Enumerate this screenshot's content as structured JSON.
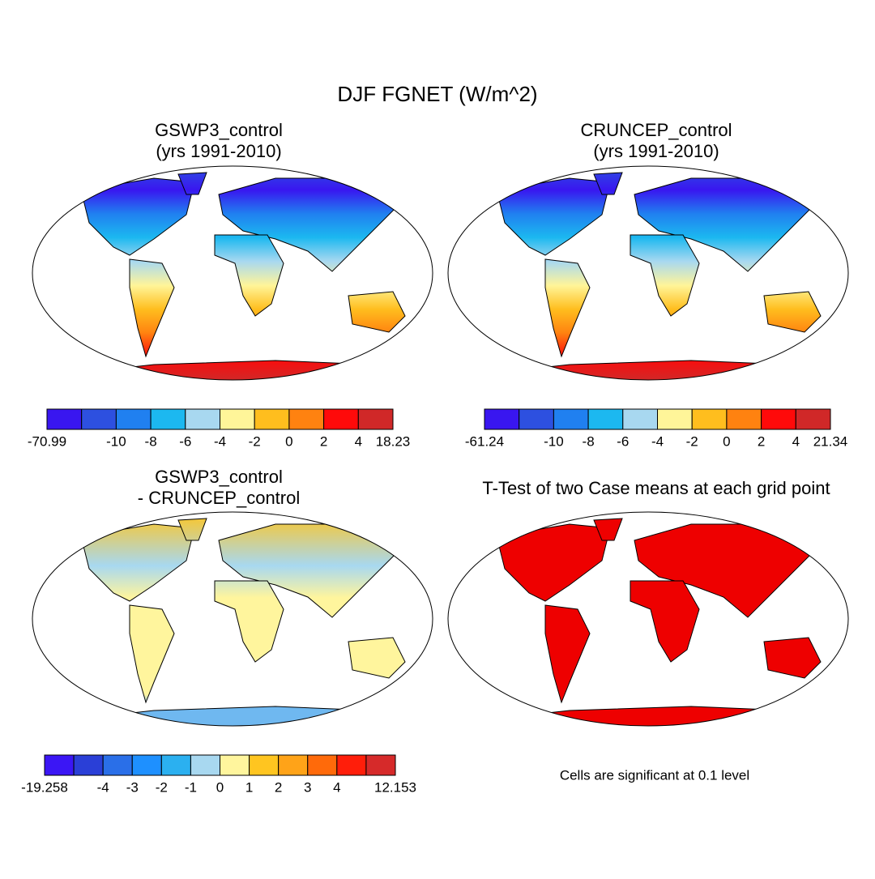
{
  "title": "DJF FGNET (W/m^2)",
  "panels": [
    {
      "title": [
        "GSWP3_control",
        "(yrs 1991-2010)"
      ],
      "colorbar": {
        "colors": [
          "#3916f0",
          "#2d50e0",
          "#2080f0",
          "#1cb8f0",
          "#a8d8f0",
          "#fff599",
          "#ffbe1e",
          "#ff8210",
          "#ff0a0a",
          "#d02828"
        ],
        "labels": [
          -70.99,
          null,
          -10,
          -8,
          -6,
          -4,
          -2,
          0,
          2,
          4,
          18.23
        ]
      }
    },
    {
      "title": [
        "CRUNCEP_control",
        "(yrs 1991-2010)"
      ],
      "colorbar": {
        "colors": [
          "#3916f0",
          "#2d50e0",
          "#2080f0",
          "#1cb8f0",
          "#a8d8f0",
          "#fff599",
          "#ffbe1e",
          "#ff8210",
          "#ff0a0a",
          "#d02828"
        ],
        "labels": [
          -61.24,
          null,
          -10,
          -8,
          -6,
          -4,
          -2,
          0,
          2,
          4,
          21.34
        ]
      }
    },
    {
      "title": [
        "GSWP3_control",
        "- CRUNCEP_control"
      ],
      "colorbar": {
        "colors": [
          "#3b16f5",
          "#2a3fd7",
          "#2a6fe8",
          "#1e90ff",
          "#2bb0f0",
          "#a8d8f0",
          "#fff59d",
          "#ffc520",
          "#ffa318",
          "#ff6a0a",
          "#ff1e0a",
          "#d62a2a"
        ],
        "labels": [
          -19.258,
          null,
          -4,
          -3,
          -2,
          -1,
          0,
          1,
          2,
          3,
          4,
          null,
          12.153
        ]
      }
    },
    {
      "title": [
        "T-Test of two Case means at each grid point"
      ],
      "note": "Cells are significant at 0.1 level"
    }
  ]
}
